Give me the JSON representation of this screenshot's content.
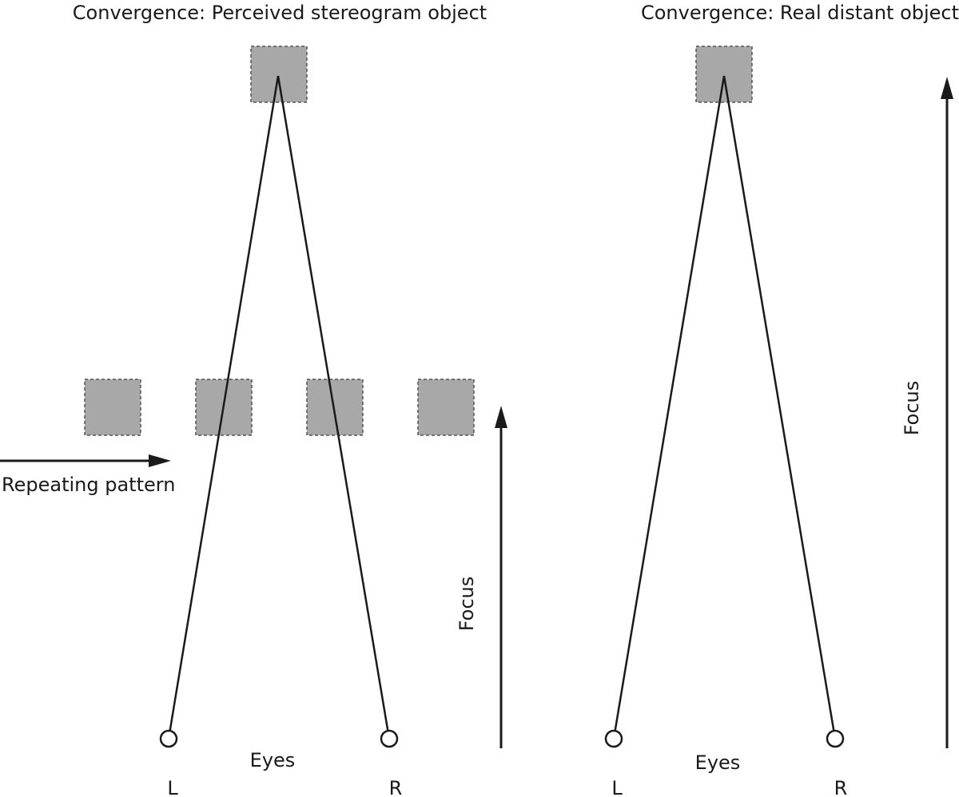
{
  "left_panel": {
    "title": "Convergence: Perceived stereogram object",
    "pattern_label": "Repeating pattern",
    "focus_label": "Focus",
    "eyes_label": "Eyes",
    "left_eye_label": "L",
    "right_eye_label": "R"
  },
  "right_panel": {
    "title": "Convergence: Real distant object",
    "focus_label": "Focus",
    "eyes_label": "Eyes",
    "left_eye_label": "L",
    "right_eye_label": "R"
  },
  "colors": {
    "box_fill": "#a8a8a8",
    "line": "#1a1a1a"
  }
}
